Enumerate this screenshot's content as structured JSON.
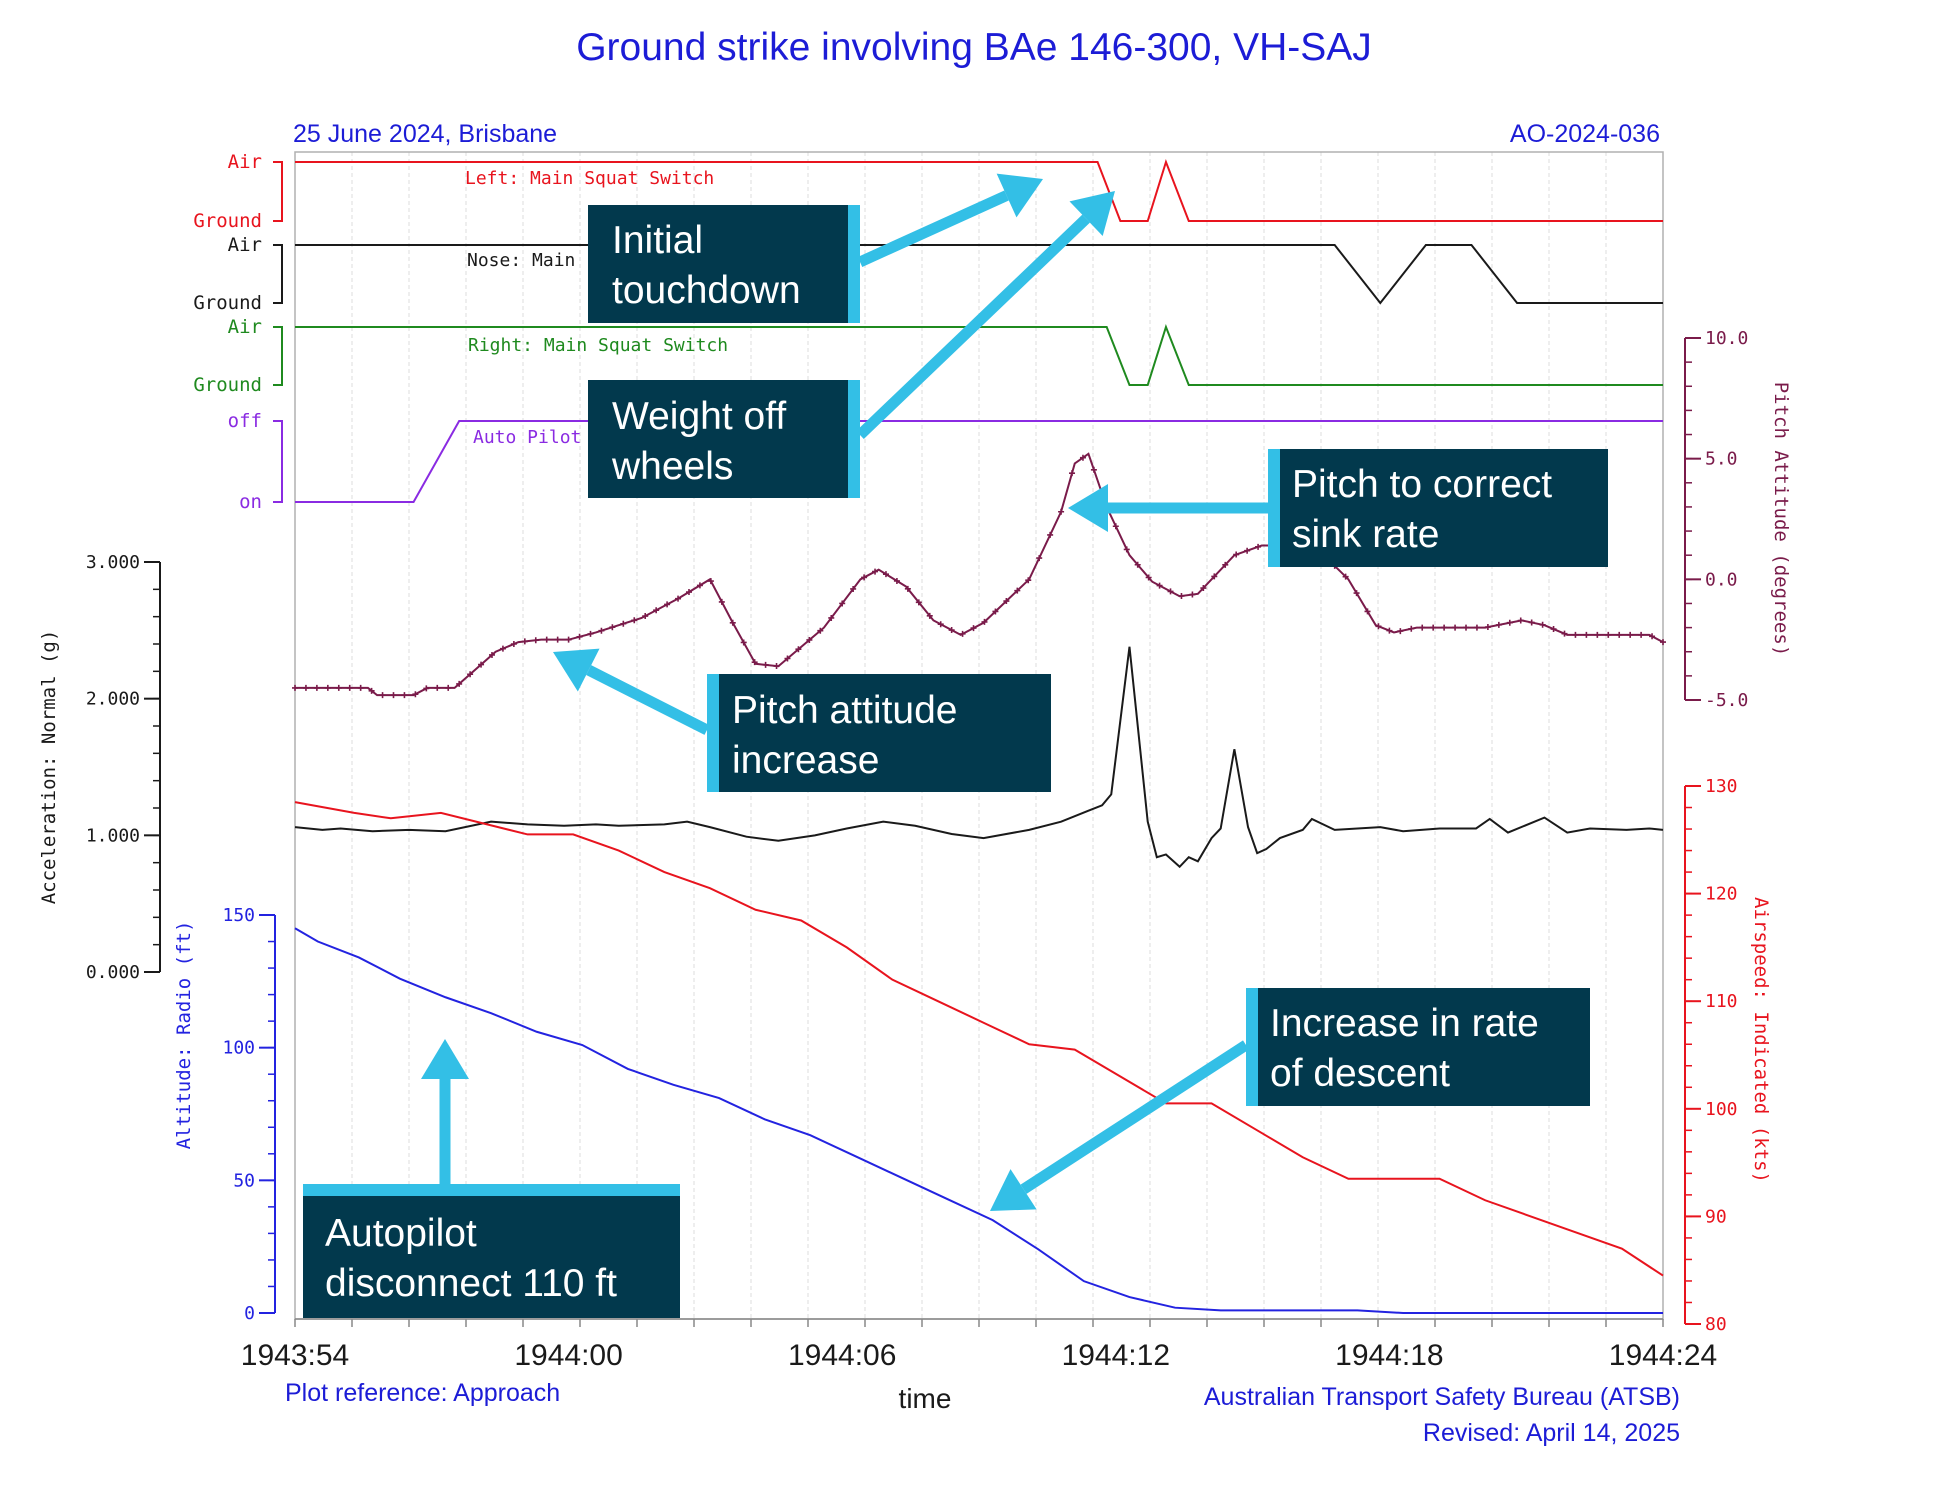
{
  "chart_data": {
    "type": "line",
    "title": "Ground strike involving BAe 146-300, VH-SAJ",
    "header_left": "25 June 2024, Brisbane",
    "header_right": "AO-2024-036",
    "footer_left": "Plot reference: Approach",
    "footer_right_1": "Australian Transport Safety Bureau (ATSB)",
    "footer_right_2": "Revised: April 14, 2025",
    "xlabel": "time",
    "x_ticks": [
      "1943:54",
      "1944:00",
      "1944:06",
      "1944:12",
      "1944:18",
      "1944:24"
    ],
    "x_tick_seconds": [
      0,
      6,
      12,
      18,
      24,
      30
    ],
    "x_range_seconds": [
      0,
      30
    ],
    "discrete": [
      {
        "name": "Left: Main Squat Switch",
        "states": [
          "Air",
          "Ground"
        ],
        "color": "#e8141e",
        "points": [
          [
            0,
            1
          ],
          [
            17.6,
            1
          ],
          [
            18.1,
            0
          ],
          [
            18.7,
            0
          ],
          [
            19.1,
            1
          ],
          [
            19.6,
            0
          ],
          [
            30,
            0
          ]
        ]
      },
      {
        "name": "Nose: Main Squat Switch",
        "label_shown": "Nose: Main",
        "states": [
          "Air",
          "Ground"
        ],
        "color": "#1a1a1a",
        "points": [
          [
            0,
            1
          ],
          [
            22.8,
            1
          ],
          [
            23.8,
            0
          ],
          [
            24.8,
            1
          ],
          [
            25.8,
            1
          ],
          [
            26.8,
            0
          ],
          [
            30,
            0
          ]
        ]
      },
      {
        "name": "Right: Main Squat Switch",
        "states": [
          "Air",
          "Ground"
        ],
        "color": "#1f8a1f",
        "points": [
          [
            0,
            1
          ],
          [
            17.8,
            1
          ],
          [
            18.3,
            0
          ],
          [
            18.7,
            0
          ],
          [
            19.1,
            1
          ],
          [
            19.6,
            0
          ],
          [
            30,
            0
          ]
        ]
      },
      {
        "name": "Auto Pilot Engaged",
        "label_shown": "Auto Pilot E",
        "states": [
          "off",
          "on"
        ],
        "color": "#8a2be2",
        "points": [
          [
            0,
            0
          ],
          [
            2.6,
            0
          ],
          [
            3.6,
            1
          ],
          [
            30,
            1
          ]
        ]
      }
    ],
    "series": [
      {
        "name": "Pitch Attitude (degrees)",
        "axis_label": "Pitch Attitude (degrees)",
        "color": "#7a1b4a",
        "markers": true,
        "ylim": [
          -5,
          10
        ],
        "ticks": [
          "10.0",
          "5.0",
          "0.0",
          "-5.0"
        ],
        "tick_values": [
          10,
          5,
          0,
          -5
        ],
        "points": [
          [
            0,
            -4.5
          ],
          [
            1,
            -4.5
          ],
          [
            1.6,
            -4.5
          ],
          [
            1.8,
            -4.8
          ],
          [
            2.6,
            -4.8
          ],
          [
            2.9,
            -4.5
          ],
          [
            3.5,
            -4.5
          ],
          [
            4.4,
            -3
          ],
          [
            4.9,
            -2.6
          ],
          [
            5.4,
            -2.5
          ],
          [
            6,
            -2.5
          ],
          [
            6.6,
            -2.2
          ],
          [
            7.6,
            -1.6
          ],
          [
            8.4,
            -0.8
          ],
          [
            9.1,
            0
          ],
          [
            9.6,
            -1.8
          ],
          [
            10.1,
            -3.5
          ],
          [
            10.6,
            -3.6
          ],
          [
            11.6,
            -2
          ],
          [
            12.4,
            0
          ],
          [
            12.8,
            0.4
          ],
          [
            13.4,
            -0.3
          ],
          [
            14,
            -1.7
          ],
          [
            14.6,
            -2.3
          ],
          [
            15.1,
            -1.8
          ],
          [
            16.1,
            0
          ],
          [
            16.8,
            2.8
          ],
          [
            17.1,
            4.8
          ],
          [
            17.4,
            5.2
          ],
          [
            17.8,
            3
          ],
          [
            18.3,
            1
          ],
          [
            18.8,
            -0.1
          ],
          [
            19.4,
            -0.7
          ],
          [
            19.8,
            -0.6
          ],
          [
            20.6,
            1
          ],
          [
            21.2,
            1.4
          ],
          [
            22,
            1.4
          ],
          [
            22.4,
            1.3
          ],
          [
            23.1,
            0
          ],
          [
            23.7,
            -1.9
          ],
          [
            24.1,
            -2.2
          ],
          [
            24.6,
            -2
          ],
          [
            25.6,
            -2
          ],
          [
            26.1,
            -2
          ],
          [
            26.9,
            -1.7
          ],
          [
            27.4,
            -1.9
          ],
          [
            27.9,
            -2.3
          ],
          [
            29,
            -2.3
          ],
          [
            29.7,
            -2.3
          ],
          [
            30,
            -2.6
          ]
        ]
      },
      {
        "name": "Acceleration: Normal (g)",
        "axis_label": "Acceleration: Normal (g)",
        "color": "#1a1a1a",
        "markers": false,
        "ylim": [
          0,
          3
        ],
        "ticks": [
          "3.000",
          "2.000",
          "1.000",
          "0.000"
        ],
        "tick_values": [
          3,
          2,
          1,
          0
        ],
        "points": [
          [
            0,
            1.06
          ],
          [
            0.6,
            1.04
          ],
          [
            1,
            1.05
          ],
          [
            1.7,
            1.03
          ],
          [
            2.5,
            1.04
          ],
          [
            3.3,
            1.03
          ],
          [
            4.3,
            1.1
          ],
          [
            5.1,
            1.08
          ],
          [
            5.9,
            1.07
          ],
          [
            6.6,
            1.08
          ],
          [
            7.1,
            1.07
          ],
          [
            8.1,
            1.08
          ],
          [
            8.6,
            1.1
          ],
          [
            9.1,
            1.06
          ],
          [
            9.9,
            0.99
          ],
          [
            10.6,
            0.96
          ],
          [
            11.4,
            1
          ],
          [
            12.1,
            1.05
          ],
          [
            12.9,
            1.1
          ],
          [
            13.6,
            1.07
          ],
          [
            14.4,
            1.01
          ],
          [
            15.1,
            0.98
          ],
          [
            16.1,
            1.04
          ],
          [
            16.8,
            1.1
          ],
          [
            17.4,
            1.18
          ],
          [
            17.7,
            1.22
          ],
          [
            17.9,
            1.3
          ],
          [
            18.3,
            2.38
          ],
          [
            18.7,
            1.1
          ],
          [
            18.9,
            0.84
          ],
          [
            19.1,
            0.86
          ],
          [
            19.4,
            0.77
          ],
          [
            19.6,
            0.84
          ],
          [
            19.8,
            0.81
          ],
          [
            20.1,
            0.98
          ],
          [
            20.3,
            1.05
          ],
          [
            20.6,
            1.63
          ],
          [
            20.9,
            1.06
          ],
          [
            21.1,
            0.87
          ],
          [
            21.3,
            0.9
          ],
          [
            21.6,
            0.98
          ],
          [
            22.1,
            1.04
          ],
          [
            22.3,
            1.12
          ],
          [
            22.8,
            1.04
          ],
          [
            23.8,
            1.06
          ],
          [
            24.3,
            1.03
          ],
          [
            25.1,
            1.05
          ],
          [
            25.9,
            1.05
          ],
          [
            26.2,
            1.12
          ],
          [
            26.6,
            1.02
          ],
          [
            27.4,
            1.13
          ],
          [
            27.9,
            1.02
          ],
          [
            28.4,
            1.05
          ],
          [
            29.2,
            1.04
          ],
          [
            29.7,
            1.05
          ],
          [
            30,
            1.04
          ]
        ]
      },
      {
        "name": "Airspeed: Indicated (kts)",
        "axis_label": "Airspeed: Indicated (kts)",
        "color": "#e8141e",
        "markers": false,
        "ylim": [
          80,
          130
        ],
        "ticks": [
          "130",
          "120",
          "110",
          "100",
          "90",
          "80"
        ],
        "tick_values": [
          130,
          120,
          110,
          100,
          90,
          80
        ],
        "points": [
          [
            0,
            128.5
          ],
          [
            1.3,
            127.5
          ],
          [
            2.1,
            127
          ],
          [
            3.2,
            127.5
          ],
          [
            5.1,
            125.5
          ],
          [
            6.1,
            125.5
          ],
          [
            7.1,
            124
          ],
          [
            8.1,
            122
          ],
          [
            9.1,
            120.5
          ],
          [
            10.1,
            118.5
          ],
          [
            11.1,
            117.5
          ],
          [
            12.1,
            115
          ],
          [
            13.1,
            112
          ],
          [
            14.1,
            110
          ],
          [
            15.1,
            108
          ],
          [
            16.1,
            106
          ],
          [
            17.1,
            105.5
          ],
          [
            18.1,
            103
          ],
          [
            19.1,
            100.5
          ],
          [
            20.1,
            100.5
          ],
          [
            21.1,
            98
          ],
          [
            22.1,
            95.5
          ],
          [
            23.1,
            93.5
          ],
          [
            24.1,
            93.5
          ],
          [
            25.1,
            93.5
          ],
          [
            26.1,
            91.5
          ],
          [
            27.1,
            90
          ],
          [
            28.1,
            88.5
          ],
          [
            29.1,
            87
          ],
          [
            30,
            84.5
          ]
        ]
      },
      {
        "name": "Altitude: Radio (ft)",
        "axis_label": "Altitude: Radio (ft)",
        "color": "#2323e0",
        "markers": false,
        "ylim": [
          0,
          150
        ],
        "ticks": [
          "150",
          "100",
          "50",
          "0"
        ],
        "tick_values": [
          150,
          100,
          50,
          0
        ],
        "points": [
          [
            0,
            145
          ],
          [
            0.5,
            140
          ],
          [
            1.4,
            134
          ],
          [
            2.3,
            126
          ],
          [
            3.3,
            119
          ],
          [
            4.3,
            113
          ],
          [
            5.3,
            106
          ],
          [
            6.3,
            101
          ],
          [
            7.3,
            92
          ],
          [
            8.3,
            86
          ],
          [
            9.3,
            81
          ],
          [
            10.3,
            73
          ],
          [
            11.3,
            67
          ],
          [
            12.3,
            59
          ],
          [
            13.3,
            51
          ],
          [
            14.3,
            43
          ],
          [
            15.3,
            35
          ],
          [
            16.3,
            24
          ],
          [
            17.3,
            12
          ],
          [
            18.3,
            6
          ],
          [
            19.3,
            2
          ],
          [
            20.3,
            1
          ],
          [
            21.3,
            1
          ],
          [
            22.3,
            1
          ],
          [
            23.3,
            1
          ],
          [
            24.3,
            0
          ],
          [
            26.3,
            0
          ],
          [
            28.3,
            0
          ],
          [
            30,
            0
          ]
        ]
      }
    ],
    "annotations": [
      {
        "text_lines": [
          "Initial",
          "touchdown"
        ]
      },
      {
        "text_lines": [
          "Weight off",
          "wheels"
        ]
      },
      {
        "text_lines": [
          "Pitch to correct",
          "sink rate"
        ]
      },
      {
        "text_lines": [
          "Pitch attitude",
          "increase"
        ]
      },
      {
        "text_lines": [
          "Increase in rate",
          "of descent"
        ]
      },
      {
        "text_lines": [
          "Autopilot",
          "disconnect 110 ft"
        ]
      }
    ],
    "annotation_color": "#33bfe6",
    "annotation_box_color": "#02394d",
    "grid": true
  }
}
